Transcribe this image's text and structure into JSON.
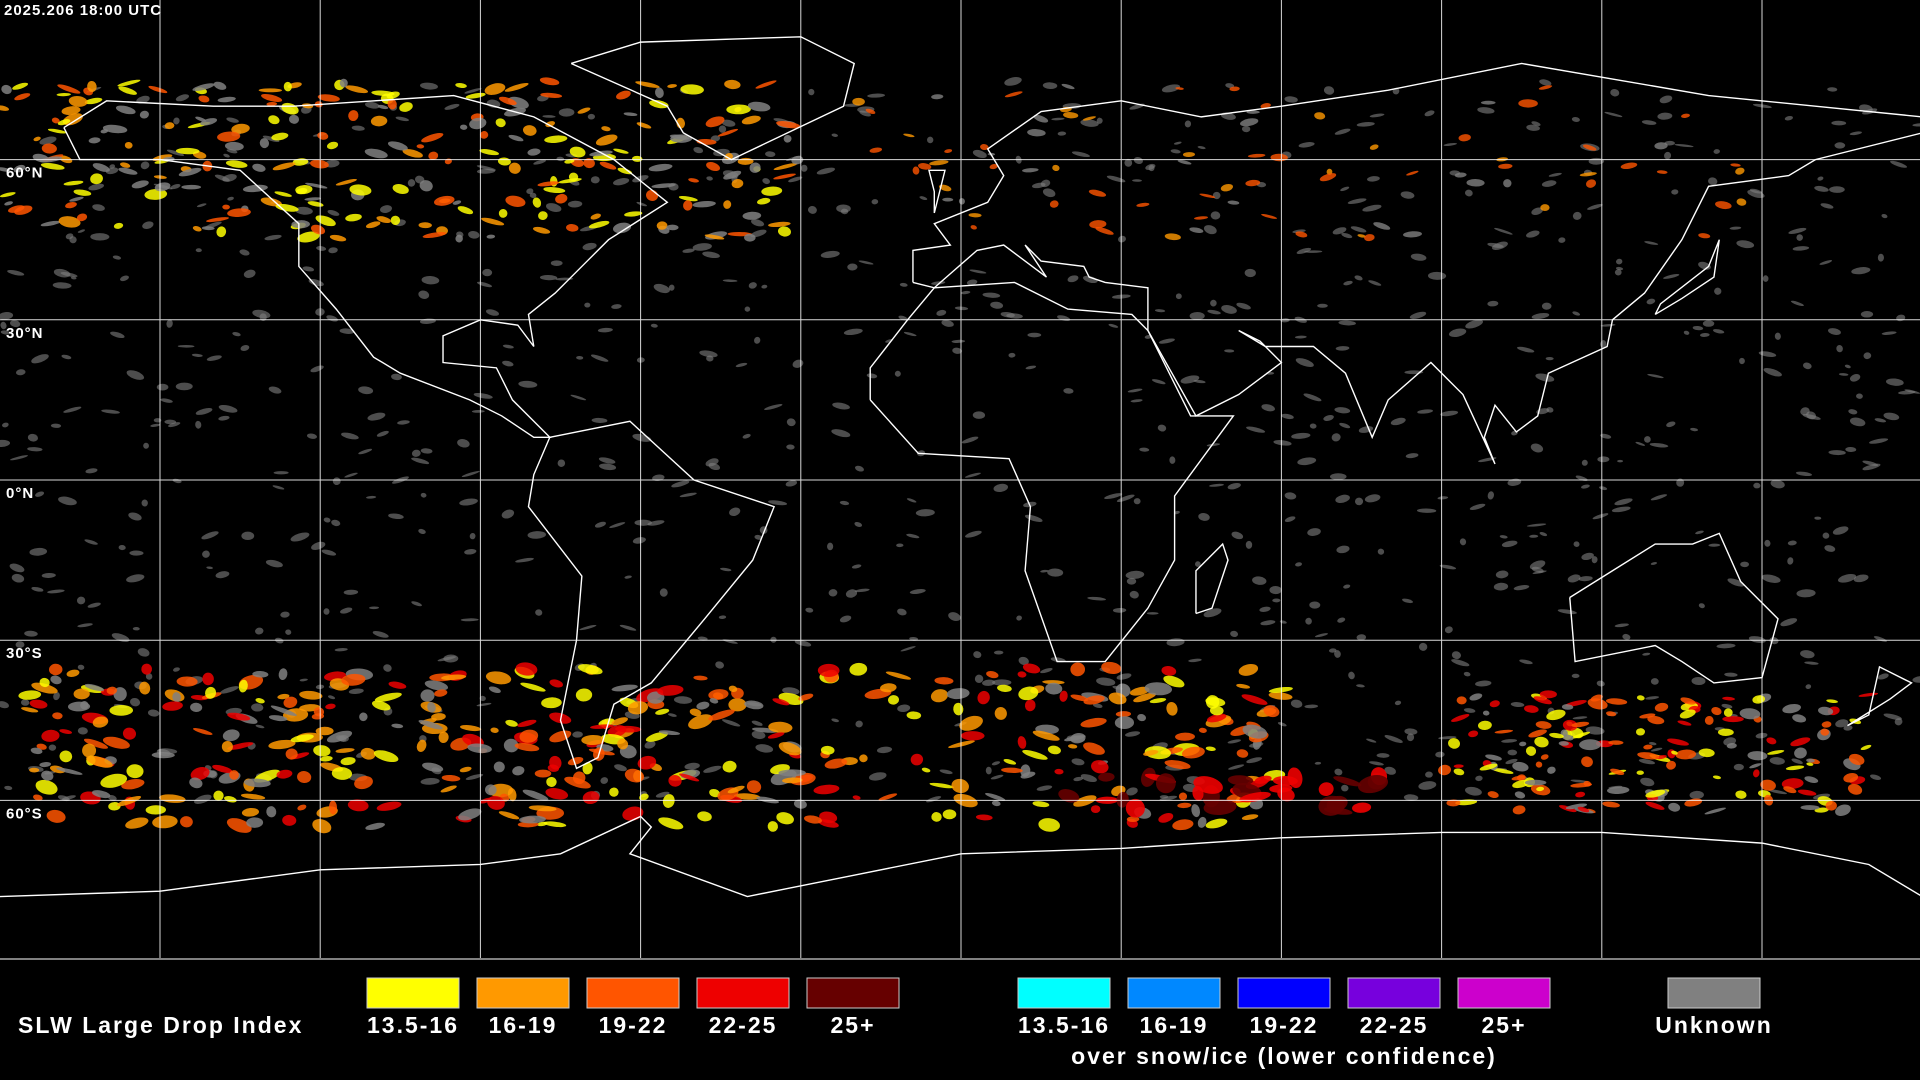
{
  "timestamp": "2025.206 18:00 UTC",
  "latitude_labels": [
    "60°N",
    "30°N",
    "0°N",
    "30°S",
    "60°S"
  ],
  "legend": {
    "title": "SLW Large Drop Index",
    "groups": [
      {
        "items": [
          {
            "label": "13.5-16",
            "color": "#ffff00"
          },
          {
            "label": "16-19",
            "color": "#ff9900"
          },
          {
            "label": "19-22",
            "color": "#ff5500"
          },
          {
            "label": "22-25",
            "color": "#ee0000"
          },
          {
            "label": "25+",
            "color": "#660000"
          }
        ]
      },
      {
        "items": [
          {
            "label": "13.5-16",
            "color": "#00ffff"
          },
          {
            "label": "16-19",
            "color": "#0088ff"
          },
          {
            "label": "19-22",
            "color": "#0000ff"
          },
          {
            "label": "22-25",
            "color": "#7700dd"
          },
          {
            "label": "25+",
            "color": "#cc00cc"
          }
        ],
        "caption": "over snow/ice (lower confidence)"
      },
      {
        "items": [
          {
            "label": "Unknown",
            "color": "#808080"
          }
        ]
      }
    ]
  }
}
